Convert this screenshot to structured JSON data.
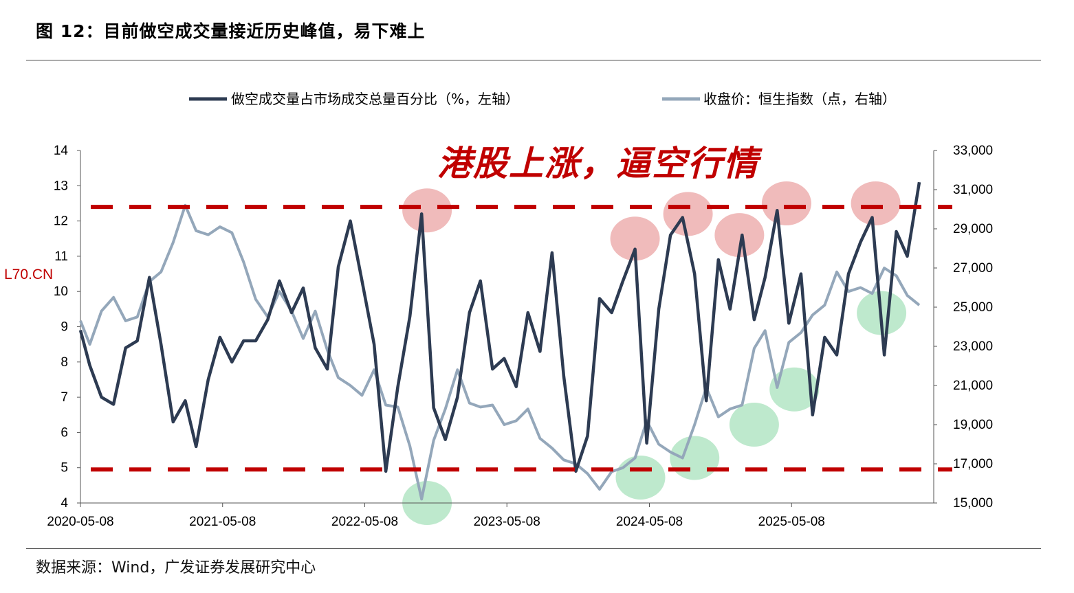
{
  "header": {
    "title": "图 12：目前做空成交量接近历史峰值，易下难上"
  },
  "footer": {
    "source": "数据来源：Wind，广发证券发展研究中心"
  },
  "watermark": "L70.CN",
  "annotation": {
    "slogan": "港股上涨，逼空行情"
  },
  "colors": {
    "short_ratio": "#2d3b52",
    "hsi": "#94a7ba",
    "threshold": "#c00000",
    "peak_marker": "#eba4a4",
    "trough_marker": "#a8e2bc"
  },
  "chart_data": {
    "type": "line",
    "title": "",
    "x_ticks": [
      "2020-05-08",
      "2021-05-08",
      "2022-05-08",
      "2023-05-08",
      "2024-05-08",
      "2025-05-08"
    ],
    "x_range": [
      "2020-05-08",
      "2026-05-08"
    ],
    "y_left": {
      "range": [
        4,
        14
      ],
      "ticks": [
        "4",
        "5",
        "6",
        "7",
        "8",
        "9",
        "10",
        "11",
        "12",
        "13",
        "14"
      ]
    },
    "y_right": {
      "range": [
        15000,
        33000
      ],
      "ticks": [
        "15,000",
        "17,000",
        "19,000",
        "21,000",
        "23,000",
        "25,000",
        "27,000",
        "29,000",
        "31,000",
        "33,000"
      ]
    },
    "legend_position": "top",
    "series": [
      {
        "name": "做空成交量占市场成交总量百分比（%，左轴）",
        "axis": "left",
        "points": [
          [
            "2020-05-08",
            8.9
          ],
          [
            "2020-06-01",
            7.9
          ],
          [
            "2020-07-01",
            7.0
          ],
          [
            "2020-08-01",
            6.8
          ],
          [
            "2020-09-01",
            8.4
          ],
          [
            "2020-10-01",
            8.6
          ],
          [
            "2020-11-01",
            10.4
          ],
          [
            "2020-12-01",
            8.5
          ],
          [
            "2021-01-01",
            6.3
          ],
          [
            "2021-02-01",
            6.9
          ],
          [
            "2021-03-01",
            5.6
          ],
          [
            "2021-04-01",
            7.5
          ],
          [
            "2021-05-01",
            8.7
          ],
          [
            "2021-06-01",
            8.0
          ],
          [
            "2021-07-01",
            8.6
          ],
          [
            "2021-08-01",
            8.6
          ],
          [
            "2021-09-01",
            9.2
          ],
          [
            "2021-10-01",
            10.3
          ],
          [
            "2021-11-01",
            9.4
          ],
          [
            "2021-12-01",
            10.1
          ],
          [
            "2022-01-01",
            8.4
          ],
          [
            "2022-02-01",
            7.8
          ],
          [
            "2022-03-01",
            10.7
          ],
          [
            "2022-04-01",
            12.0
          ],
          [
            "2022-05-01",
            10.3
          ],
          [
            "2022-06-01",
            8.5
          ],
          [
            "2022-07-01",
            4.9
          ],
          [
            "2022-08-01",
            7.3
          ],
          [
            "2022-09-01",
            9.3
          ],
          [
            "2022-10-01",
            12.2
          ],
          [
            "2022-11-01",
            6.7
          ],
          [
            "2022-12-01",
            5.8
          ],
          [
            "2023-01-01",
            7.0
          ],
          [
            "2023-02-01",
            9.4
          ],
          [
            "2023-03-01",
            10.3
          ],
          [
            "2023-04-01",
            7.8
          ],
          [
            "2023-05-01",
            8.1
          ],
          [
            "2023-06-01",
            7.3
          ],
          [
            "2023-07-01",
            9.4
          ],
          [
            "2023-08-01",
            8.3
          ],
          [
            "2023-09-01",
            11.1
          ],
          [
            "2023-10-01",
            7.6
          ],
          [
            "2023-11-01",
            4.9
          ],
          [
            "2023-12-01",
            5.9
          ],
          [
            "2024-01-01",
            9.8
          ],
          [
            "2024-02-01",
            9.4
          ],
          [
            "2024-03-01",
            10.3
          ],
          [
            "2024-04-01",
            11.2
          ],
          [
            "2024-05-01",
            5.7
          ],
          [
            "2024-06-01",
            9.5
          ],
          [
            "2024-07-01",
            11.6
          ],
          [
            "2024-08-01",
            12.1
          ],
          [
            "2024-09-01",
            10.5
          ],
          [
            "2024-10-01",
            6.9
          ],
          [
            "2024-11-01",
            10.9
          ],
          [
            "2024-12-01",
            9.5
          ],
          [
            "2025-01-01",
            11.6
          ],
          [
            "2025-02-01",
            9.2
          ],
          [
            "2025-03-01",
            10.4
          ],
          [
            "2025-04-01",
            12.3
          ],
          [
            "2025-05-01",
            9.1
          ],
          [
            "2025-06-01",
            10.5
          ],
          [
            "2025-07-01",
            6.5
          ],
          [
            "2025-08-01",
            8.7
          ],
          [
            "2025-09-01",
            8.2
          ],
          [
            "2025-10-01",
            10.5
          ],
          [
            "2025-11-01",
            11.4
          ],
          [
            "2025-12-01",
            12.1
          ],
          [
            "2026-01-01",
            8.2
          ],
          [
            "2026-02-01",
            11.7
          ],
          [
            "2026-03-01",
            11.0
          ],
          [
            "2026-04-01",
            13.1
          ]
        ]
      },
      {
        "name": "收盘价：恒生指数（点，右轴）",
        "axis": "right",
        "points": [
          [
            "2020-05-08",
            24300
          ],
          [
            "2020-06-01",
            23100
          ],
          [
            "2020-07-01",
            24800
          ],
          [
            "2020-08-01",
            25500
          ],
          [
            "2020-09-01",
            24300
          ],
          [
            "2020-10-01",
            24500
          ],
          [
            "2020-11-01",
            26300
          ],
          [
            "2020-12-01",
            26800
          ],
          [
            "2021-01-01",
            28300
          ],
          [
            "2021-02-01",
            30200
          ],
          [
            "2021-03-01",
            28900
          ],
          [
            "2021-04-01",
            28700
          ],
          [
            "2021-05-01",
            29100
          ],
          [
            "2021-06-01",
            28800
          ],
          [
            "2021-07-01",
            27300
          ],
          [
            "2021-08-01",
            25400
          ],
          [
            "2021-09-01",
            24500
          ],
          [
            "2021-10-01",
            25800
          ],
          [
            "2021-11-01",
            24800
          ],
          [
            "2021-12-01",
            23400
          ],
          [
            "2022-01-01",
            24800
          ],
          [
            "2022-02-01",
            22800
          ],
          [
            "2022-03-01",
            21400
          ],
          [
            "2022-04-01",
            21000
          ],
          [
            "2022-05-01",
            20500
          ],
          [
            "2022-06-01",
            21800
          ],
          [
            "2022-07-01",
            20000
          ],
          [
            "2022-08-01",
            19900
          ],
          [
            "2022-09-01",
            17900
          ],
          [
            "2022-10-01",
            15200
          ],
          [
            "2022-11-01",
            18200
          ],
          [
            "2022-12-01",
            19800
          ],
          [
            "2023-01-01",
            21800
          ],
          [
            "2023-02-01",
            20100
          ],
          [
            "2023-03-01",
            19900
          ],
          [
            "2023-04-01",
            20000
          ],
          [
            "2023-05-01",
            19000
          ],
          [
            "2023-06-01",
            19200
          ],
          [
            "2023-07-01",
            19800
          ],
          [
            "2023-08-01",
            18300
          ],
          [
            "2023-09-01",
            17800
          ],
          [
            "2023-10-01",
            17200
          ],
          [
            "2023-11-01",
            17000
          ],
          [
            "2023-12-01",
            16500
          ],
          [
            "2024-01-01",
            15700
          ],
          [
            "2024-02-01",
            16600
          ],
          [
            "2024-03-01",
            16800
          ],
          [
            "2024-04-01",
            17300
          ],
          [
            "2024-05-01",
            19200
          ],
          [
            "2024-06-01",
            18000
          ],
          [
            "2024-07-01",
            17600
          ],
          [
            "2024-08-01",
            17300
          ],
          [
            "2024-09-01",
            19000
          ],
          [
            "2024-10-01",
            20900
          ],
          [
            "2024-11-01",
            19400
          ],
          [
            "2024-12-01",
            19800
          ],
          [
            "2025-01-01",
            20000
          ],
          [
            "2025-02-01",
            22900
          ],
          [
            "2025-03-01",
            23800
          ],
          [
            "2025-04-01",
            20900
          ],
          [
            "2025-05-01",
            23200
          ],
          [
            "2025-06-01",
            23700
          ],
          [
            "2025-07-01",
            24600
          ],
          [
            "2025-08-01",
            25100
          ],
          [
            "2025-09-01",
            26800
          ],
          [
            "2025-10-01",
            25800
          ],
          [
            "2025-11-01",
            26000
          ],
          [
            "2025-12-01",
            25700
          ],
          [
            "2026-01-01",
            27000
          ],
          [
            "2026-02-01",
            26600
          ],
          [
            "2026-03-01",
            25600
          ],
          [
            "2026-04-01",
            25100
          ]
        ]
      }
    ],
    "thresholds": [
      {
        "axis": "left",
        "value": 12.4
      },
      {
        "axis": "left",
        "value": 4.95
      }
    ],
    "peak_markers": [
      [
        "2022-10-15",
        12.3
      ],
      [
        "2024-04-01",
        11.5
      ],
      [
        "2024-08-15",
        12.2
      ],
      [
        "2024-12-25",
        11.6
      ],
      [
        "2025-04-25",
        12.5
      ],
      [
        "2025-12-10",
        12.5
      ]
    ],
    "trough_markers": [
      [
        "2022-10-15",
        15000
      ],
      [
        "2024-04-15",
        16300
      ],
      [
        "2024-09-01",
        17300
      ],
      [
        "2025-02-01",
        19000
      ],
      [
        "2025-05-15",
        20800
      ],
      [
        "2025-12-25",
        24700
      ]
    ]
  }
}
